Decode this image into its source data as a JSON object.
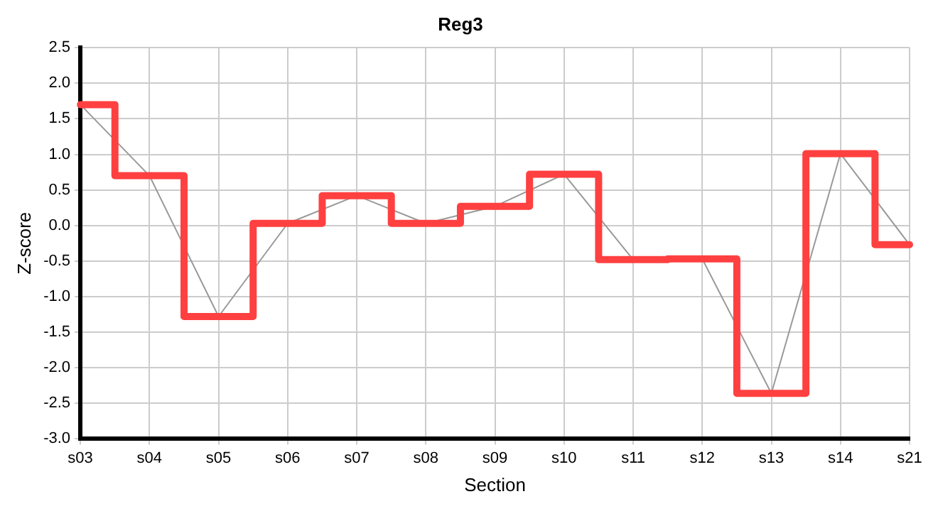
{
  "chart_data": {
    "type": "line",
    "title": "Reg3",
    "xlabel": "Section",
    "ylabel": "Z-score",
    "categories": [
      "s03",
      "s04",
      "s05",
      "s06",
      "s07",
      "s08",
      "s09",
      "s10",
      "s11",
      "s12",
      "s13",
      "s14",
      "s21"
    ],
    "series": [
      {
        "color": "#999999",
        "values": [
          1.7,
          0.7,
          -1.28,
          0.03,
          0.42,
          0.03,
          0.27,
          0.72,
          -0.48,
          -0.47,
          -2.36,
          1.01,
          -0.27
        ]
      },
      {
        "type": "step",
        "color": "#ff4040",
        "values": [
          1.7,
          0.7,
          -1.28,
          0.03,
          0.42,
          0.03,
          0.27,
          0.72,
          -0.48,
          -0.47,
          -2.36,
          1.01,
          -0.27
        ]
      }
    ],
    "ylim": [
      -3,
      2.5
    ],
    "yticks": [
      {
        "value": -3,
        "label": "-3.0"
      },
      -2.5,
      {
        "value": -2,
        "label": "-2.0"
      },
      -1.5,
      {
        "value": -1,
        "label": "-1.0"
      },
      -0.5,
      {
        "value": 0,
        "label": "0.0"
      },
      0.5,
      {
        "value": 1,
        "label": "1.0"
      },
      1.5,
      {
        "value": 2,
        "label": "2.0"
      },
      2.5
    ],
    "grid": true,
    "legend": false,
    "marker": "none",
    "line_style": "solid"
  }
}
